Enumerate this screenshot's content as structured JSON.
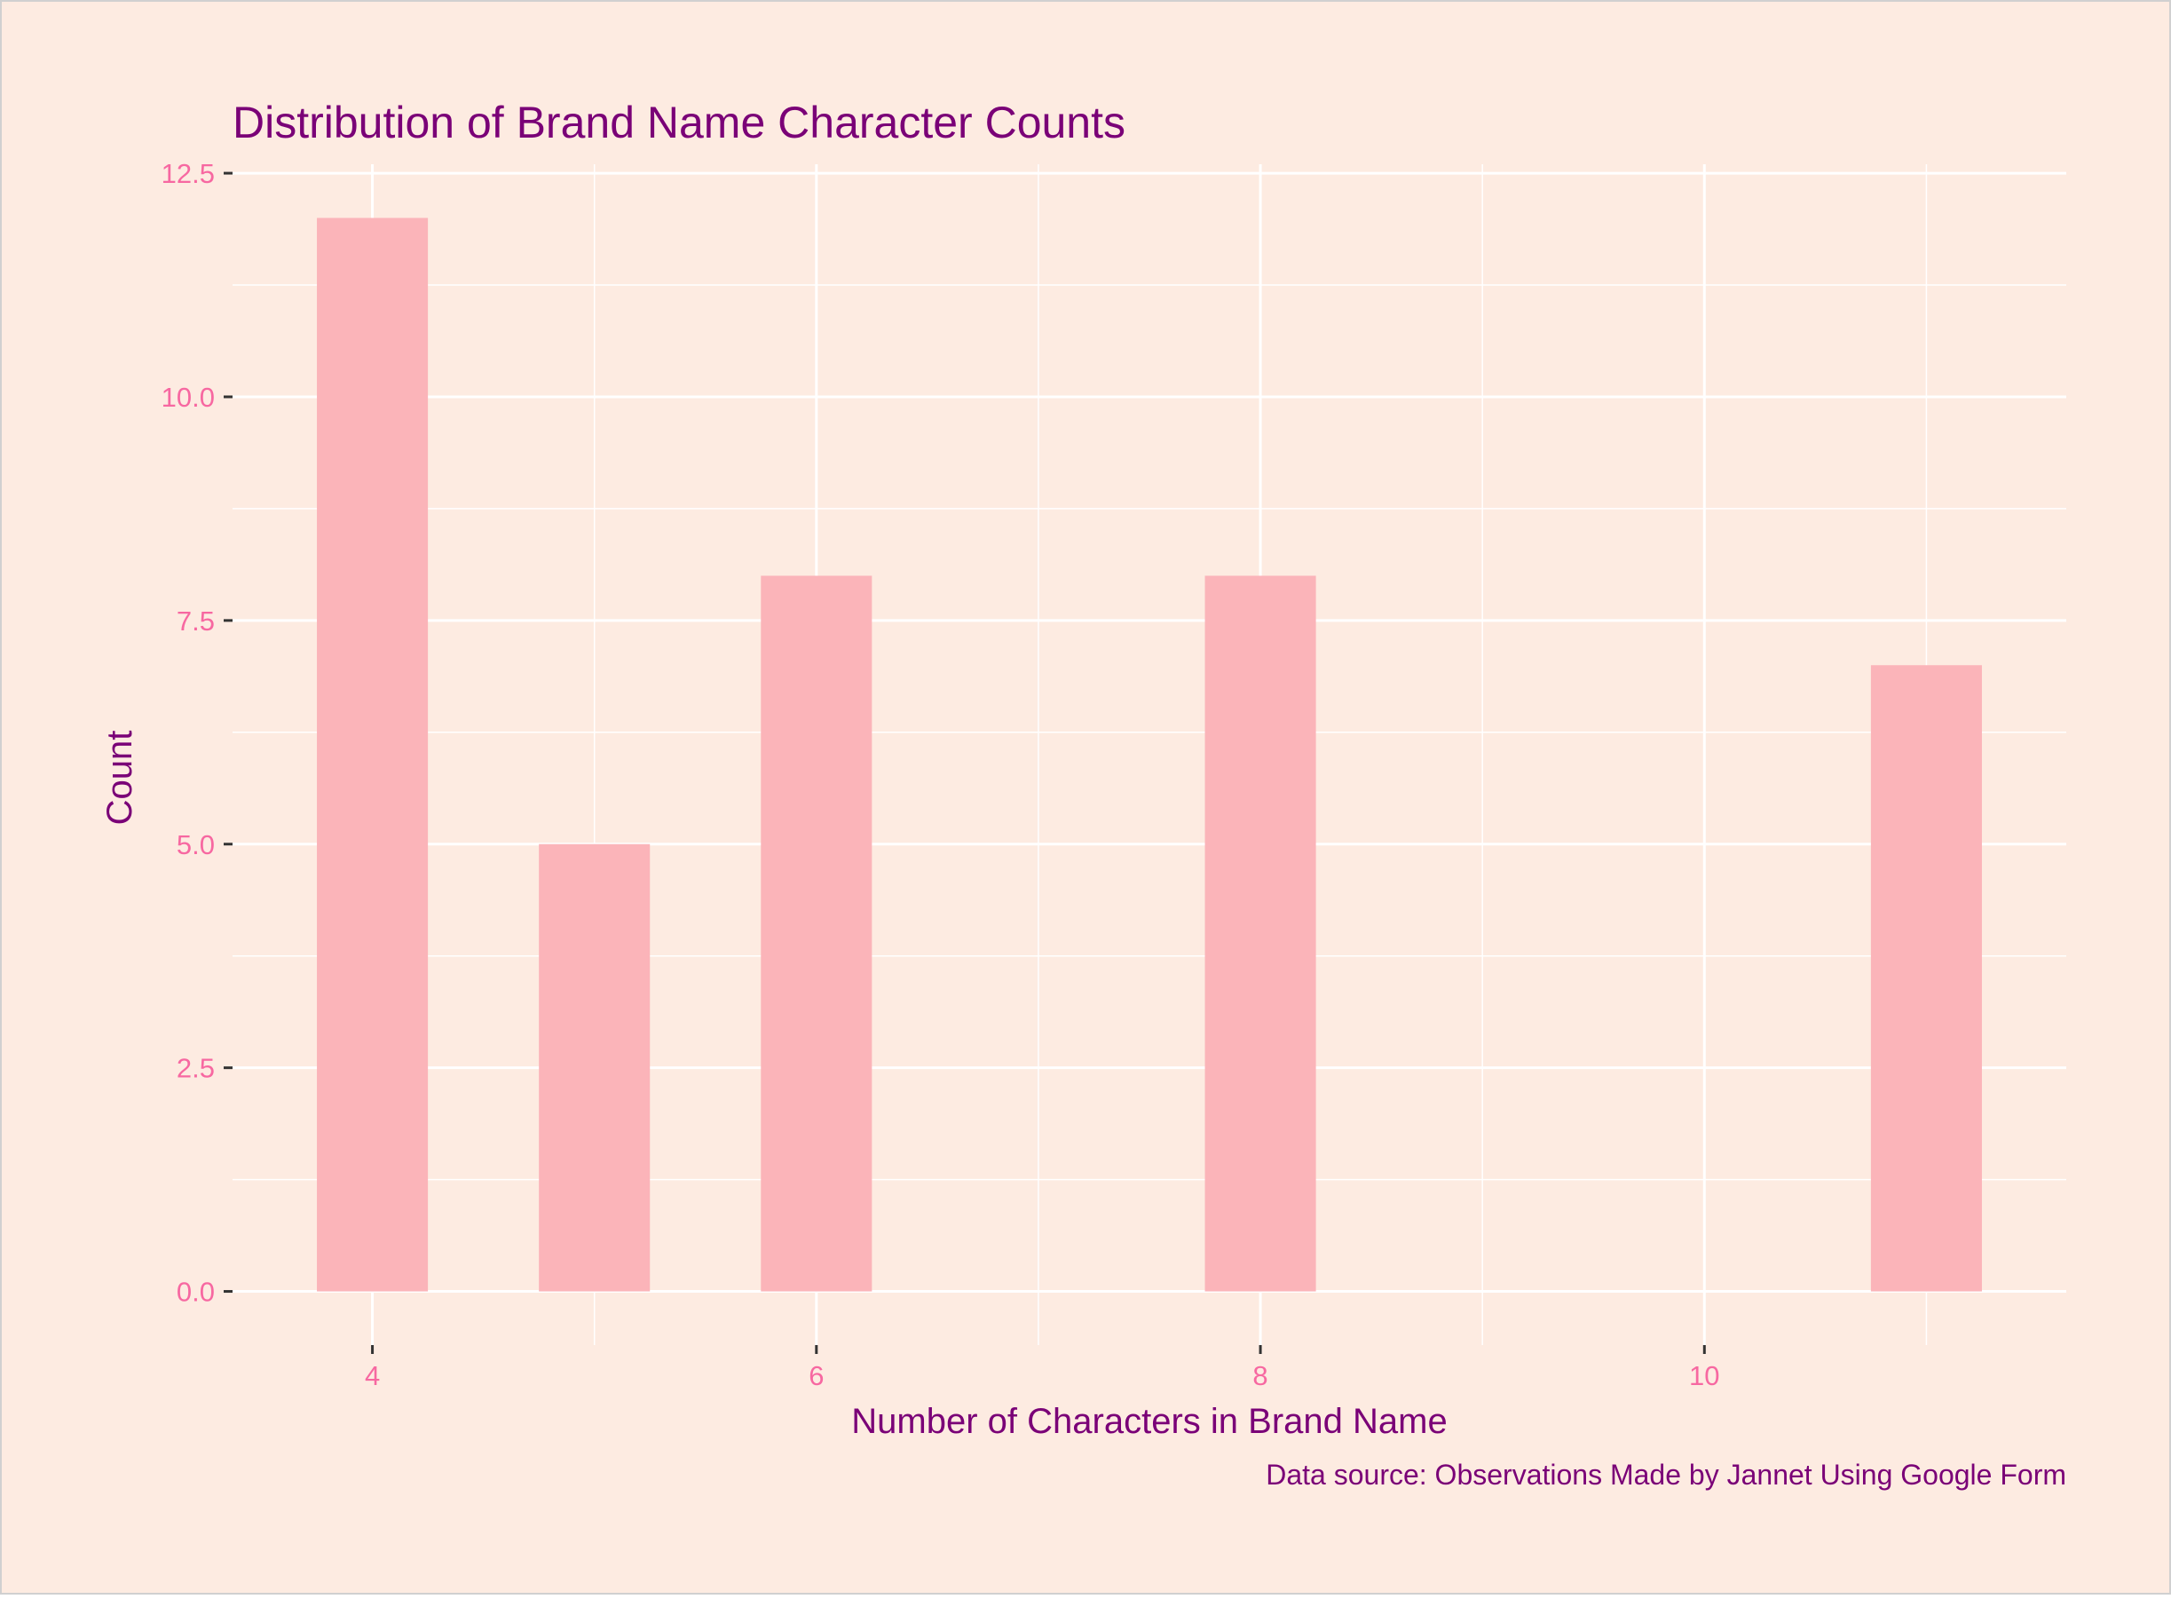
{
  "chart_data": {
    "type": "bar",
    "title": "Distribution of Brand Name Character Counts",
    "xlabel": "Number of Characters in Brand Name",
    "ylabel": "Count",
    "caption": "Data source: Observations Made by Jannet Using Google Form",
    "x": [
      4,
      5,
      6,
      8,
      11
    ],
    "values": [
      12,
      5,
      8,
      8,
      7
    ],
    "bar_width": 0.5,
    "xlim": [
      3.37,
      11.63
    ],
    "ylim": [
      -0.6,
      12.6
    ],
    "x_ticks": [
      4,
      6,
      8,
      10
    ],
    "x_tick_labels": [
      "4",
      "6",
      "8",
      "10"
    ],
    "x_minor_ticks": [
      5,
      7,
      9,
      11
    ],
    "y_ticks": [
      0,
      2.5,
      5,
      7.5,
      10,
      12.5
    ],
    "y_tick_labels": [
      "0.0",
      "2.5",
      "5.0",
      "7.5",
      "10.0",
      "12.5"
    ],
    "y_minor_ticks": [
      1.25,
      3.75,
      6.25,
      8.75,
      11.25
    ],
    "grid": true,
    "legend": "none",
    "colors": {
      "background": "#fdebe1",
      "bar": "#fbb4b9",
      "grid": "#ffffff",
      "title": "#7a0177",
      "tick_label": "#f768a1",
      "axis_tick": "#333333",
      "border": "#d0d0d0"
    }
  }
}
